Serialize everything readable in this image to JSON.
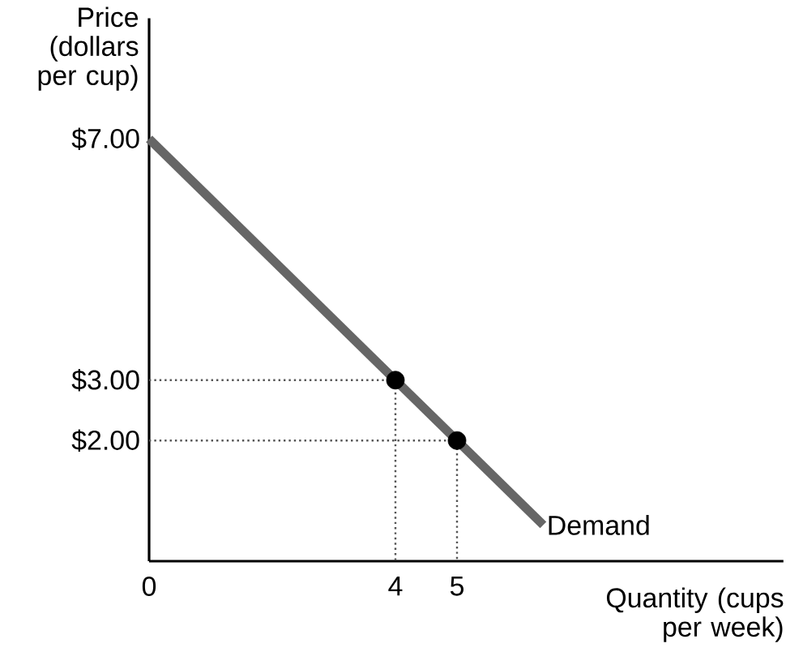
{
  "chart_data": {
    "type": "line",
    "xlabel": "Quantity (cups per week)",
    "ylabel": "Price (dollars per cup)",
    "xlim": [
      0,
      10.3
    ],
    "ylim": [
      0,
      9
    ],
    "xticks": [
      0,
      4,
      5
    ],
    "yticks": [
      {
        "value": 2,
        "label": "$2.00"
      },
      {
        "value": 3,
        "label": "$3.00"
      },
      {
        "value": 7,
        "label": "$7.00"
      }
    ],
    "grid": false,
    "series": [
      {
        "line_style": "dotted",
        "color": "#555555",
        "x": [
          0,
          4,
          4
        ],
        "values": [
          3,
          3,
          0
        ]
      },
      {
        "line_style": "dotted",
        "color": "#555555",
        "x": [
          0,
          5,
          5
        ],
        "values": [
          2,
          2,
          0
        ]
      },
      {
        "line_style": "solid",
        "name": "Demand",
        "color": "#666666",
        "x": [
          0,
          6.4
        ],
        "values": [
          7,
          0.6
        ]
      },
      {
        "type": "scatter",
        "marker": "circle",
        "color": "#000000",
        "x": [
          4,
          5
        ],
        "values": [
          3,
          2
        ]
      }
    ]
  }
}
